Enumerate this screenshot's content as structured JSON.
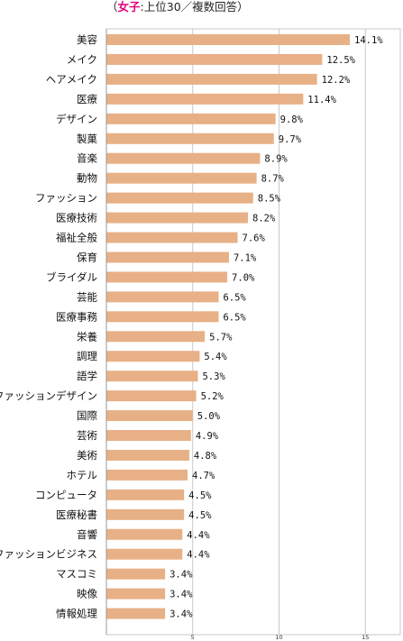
{
  "chart_data": {
    "type": "bar",
    "orientation": "horizontal",
    "title": {
      "open": "（",
      "accent": "女子",
      "rest": ":上位30／複数回答）"
    },
    "categories": [
      "美容",
      "メイク",
      "ヘアメイク",
      "医療",
      "デザイン",
      "製菓",
      "音楽",
      "動物",
      "ファッション",
      "医療技術",
      "福祉全般",
      "保育",
      "ブライダル",
      "芸能",
      "医療事務",
      "栄養",
      "調理",
      "語学",
      "ファッションデザイン",
      "国際",
      "芸術",
      "美術",
      "ホテル",
      "コンピュータ",
      "医療秘書",
      "音響",
      "ファッションビジネス",
      "マスコミ",
      "映像",
      "情報処理"
    ],
    "values": [
      14.1,
      12.5,
      12.2,
      11.4,
      9.8,
      9.7,
      8.9,
      8.7,
      8.5,
      8.2,
      7.6,
      7.1,
      7.0,
      6.5,
      6.5,
      5.7,
      5.4,
      5.3,
      5.2,
      5.0,
      4.9,
      4.8,
      4.7,
      4.5,
      4.5,
      4.4,
      4.4,
      3.4,
      3.4,
      3.4
    ],
    "value_labels": [
      "14.1%",
      "12.5%",
      "12.2%",
      "11.4%",
      "9.8%",
      "9.7%",
      "8.9%",
      "8.7%",
      "8.5%",
      "8.2%",
      "7.6%",
      "7.1%",
      "7.0%",
      "6.5%",
      "6.5%",
      "5.7%",
      "5.4%",
      "5.3%",
      "5.2%",
      "5.0%",
      "4.9%",
      "4.8%",
      "4.7%",
      "4.5%",
      "4.5%",
      "4.4%",
      "4.4%",
      "3.4%",
      "3.4%",
      "3.4%"
    ],
    "xlim": [
      0,
      17.5
    ],
    "xticks": [
      5,
      10,
      15
    ],
    "grid": true,
    "bar_color": "#e8b086",
    "grid_color": "#c8c8c8",
    "accent_color": "#e3007f"
  }
}
